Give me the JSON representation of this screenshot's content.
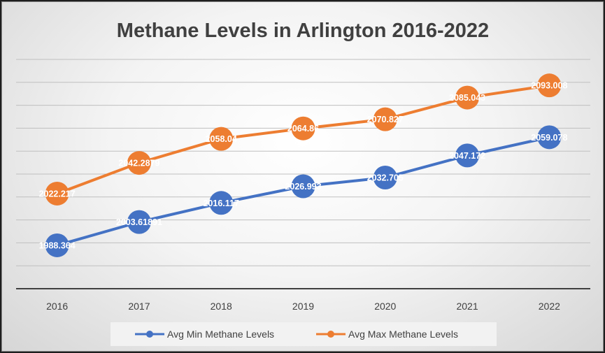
{
  "chart_data": {
    "type": "line",
    "title": "Methane Levels in Arlington 2016-2022",
    "xlabel": "",
    "ylabel": "",
    "categories": [
      "2016",
      "2017",
      "2018",
      "2019",
      "2020",
      "2021",
      "2022"
    ],
    "series": [
      {
        "name": "Avg Min Methane Levels",
        "color": "#4472C4",
        "values": [
          1988.364,
          2003.61891,
          2016.117,
          2026.993,
          2032.705,
          2047.172,
          2059.078
        ],
        "labels": [
          "1988.364",
          "2003.61891",
          "2016.117",
          "2026.993",
          "2032.705",
          "2047.172",
          "2059.078"
        ]
      },
      {
        "name": "Avg Max Methane Levels",
        "color": "#ED7D31",
        "values": [
          2022.217,
          2042.2879,
          2058.04,
          2064.86,
          2070.827,
          2085.043,
          2093.008
        ],
        "labels": [
          "2022.217",
          "2042.2879",
          "2058.04",
          "2064.86",
          "2070.827",
          "2085.043",
          "2093.008"
        ]
      }
    ],
    "ylim": [
      1960,
      2110
    ],
    "y_axis_visible": false,
    "grid": true,
    "legend": "bottom",
    "marker": "circle",
    "data_labels": true
  }
}
